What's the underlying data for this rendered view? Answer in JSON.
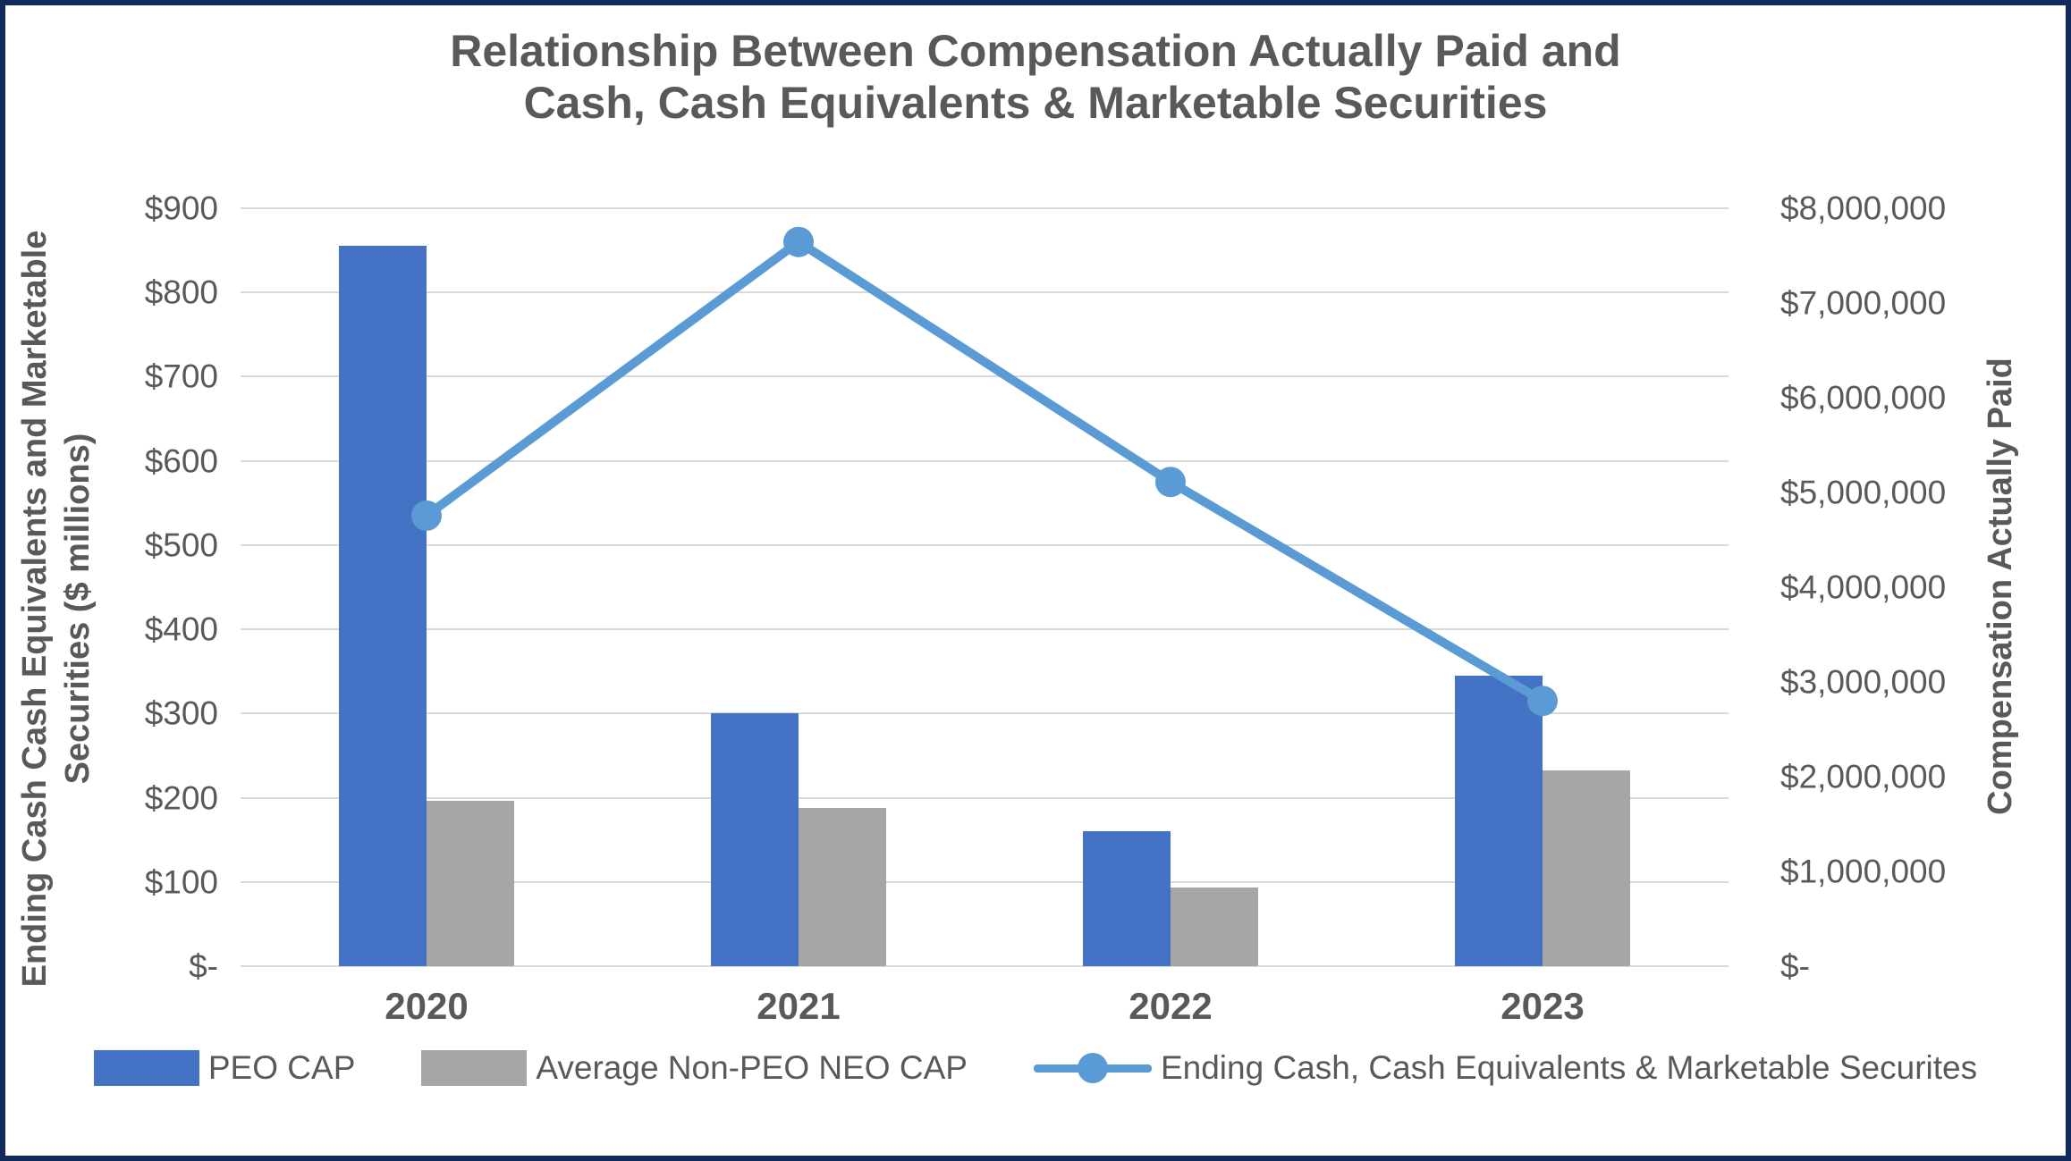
{
  "title": {
    "line1": "Relationship Between Compensation Actually Paid and",
    "line2": "Cash, Cash Equivalents & Marketable Securities"
  },
  "left_axis": {
    "title": "Ending Cash Cash Equivalents and Marketable Securities ($ millions)",
    "ticks": [
      "$900",
      "$800",
      "$700",
      "$600",
      "$500",
      "$400",
      "$300",
      "$200",
      "$100",
      "$-"
    ],
    "min": 0,
    "max": 900
  },
  "right_axis": {
    "title": "Compensation Actually Paid",
    "ticks": [
      "$8,000,000",
      "$7,000,000",
      "$6,000,000",
      "$5,000,000",
      "$4,000,000",
      "$3,000,000",
      "$2,000,000",
      "$1,000,000",
      "$-"
    ],
    "min": 0,
    "max": 8000000
  },
  "legend": [
    {
      "label": "PEO CAP",
      "swatch": "bar-swatch",
      "color": "#4472C4"
    },
    {
      "label": "Average Non-PEO NEO CAP",
      "swatch": "bar-swatch",
      "color": "#A6A6A6"
    },
    {
      "label": "Ending Cash, Cash Equivalents & Marketable Securites",
      "swatch": "line-marker-swatch",
      "color": "#5B9BD5"
    }
  ],
  "colors": {
    "peo_bar": "#4472C4",
    "neo_bar": "#A6A6A6",
    "cash_line": "#5B9BD5",
    "text": "#595959",
    "gridline": "#D9D9D9",
    "border": "#12295B"
  },
  "chart_data": {
    "type": "bar",
    "categories": [
      "2020",
      "2021",
      "2022",
      "2023"
    ],
    "series": [
      {
        "name": "PEO CAP",
        "type": "bar",
        "axis": "right",
        "color": "#4472C4",
        "values": [
          7600000,
          2670000,
          1420000,
          3070000
        ]
      },
      {
        "name": "Average Non-PEO NEO CAP",
        "type": "bar",
        "axis": "right",
        "color": "#A6A6A6",
        "values": [
          1750000,
          1670000,
          830000,
          2070000
        ]
      },
      {
        "name": "Ending Cash, Cash Equivalents & Marketable Securites",
        "type": "line",
        "axis": "left",
        "color": "#5B9BD5",
        "values": [
          535,
          860,
          575,
          315
        ]
      }
    ],
    "title": "Relationship Between Compensation Actually Paid and Cash, Cash Equivalents & Marketable Securities",
    "xlabel": "",
    "ylabel_left": "Ending Cash Cash Equivalents and Marketable Securities ($ millions)",
    "ylabel_right": "Compensation Actually Paid",
    "ylim_left": [
      0,
      900
    ],
    "ylim_right": [
      0,
      8000000
    ],
    "grid": true,
    "legend_position": "bottom"
  }
}
